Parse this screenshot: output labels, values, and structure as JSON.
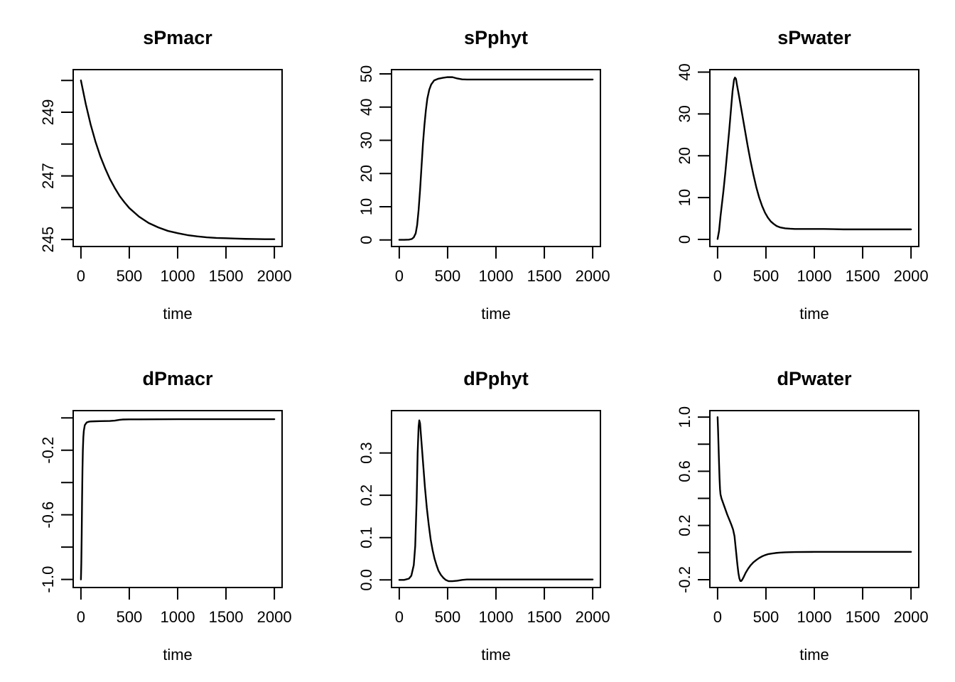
{
  "figure": {
    "background": "#ffffff",
    "stroke_color": "#000000",
    "text_color": "#000000",
    "x_axis_label": "time",
    "x_ticks": [
      0,
      500,
      1000,
      1500,
      2000
    ],
    "xlim": [
      -80,
      2080
    ]
  },
  "chart_data": [
    {
      "type": "line",
      "title": "sPmacr",
      "xlabel": "time",
      "ylabel": "",
      "xlim": [
        -80,
        2080
      ],
      "ylim": [
        244.78,
        250.34
      ],
      "x_ticks": [
        [
          0,
          "0"
        ],
        [
          500,
          "500"
        ],
        [
          1000,
          "1000"
        ],
        [
          1500,
          "1500"
        ],
        [
          2000,
          "2000"
        ]
      ],
      "y_ticks": [
        [
          245,
          "245"
        ],
        [
          246,
          null
        ],
        [
          247,
          "247"
        ],
        [
          248,
          null
        ],
        [
          249,
          "249"
        ],
        [
          250,
          null
        ]
      ],
      "x": [
        0,
        50,
        100,
        150,
        200,
        250,
        300,
        350,
        400,
        450,
        500,
        600,
        700,
        800,
        900,
        1000,
        1100,
        1200,
        1300,
        1400,
        1500,
        1600,
        1700,
        1800,
        1900,
        2000
      ],
      "y": [
        250.0,
        249.26,
        248.62,
        248.08,
        247.62,
        247.24,
        246.9,
        246.62,
        246.37,
        246.17,
        245.99,
        245.72,
        245.52,
        245.38,
        245.27,
        245.2,
        245.14,
        245.1,
        245.07,
        245.05,
        245.04,
        245.03,
        245.02,
        245.015,
        245.01,
        245.01
      ]
    },
    {
      "type": "line",
      "title": "sPphyt",
      "xlabel": "time",
      "ylabel": "",
      "xlim": [
        -80,
        2080
      ],
      "ylim": [
        -1.97,
        51.27
      ],
      "x_ticks": [
        [
          0,
          "0"
        ],
        [
          500,
          "500"
        ],
        [
          1000,
          "1000"
        ],
        [
          1500,
          "1500"
        ],
        [
          2000,
          "2000"
        ]
      ],
      "y_ticks": [
        [
          0,
          "0"
        ],
        [
          10,
          "10"
        ],
        [
          20,
          "20"
        ],
        [
          30,
          "30"
        ],
        [
          40,
          "40"
        ],
        [
          50,
          "50"
        ]
      ],
      "x": [
        0,
        50,
        100,
        130,
        150,
        170,
        185,
        200,
        215,
        230,
        245,
        260,
        275,
        290,
        310,
        330,
        360,
        400,
        450,
        500,
        550,
        600,
        650,
        700,
        800,
        1000,
        1200,
        1400,
        1600,
        1800,
        2000
      ],
      "y": [
        0.05,
        0.05,
        0.1,
        0.3,
        0.8,
        2,
        4.5,
        9,
        15,
        22,
        29,
        34.5,
        39,
        42.5,
        45.2,
        46.8,
        48.0,
        48.5,
        48.8,
        49.0,
        49.0,
        48.6,
        48.35,
        48.3,
        48.3,
        48.3,
        48.3,
        48.3,
        48.3,
        48.3,
        48.3
      ]
    },
    {
      "type": "line",
      "title": "sPwater",
      "xlabel": "time",
      "ylabel": "",
      "xlim": [
        -80,
        2080
      ],
      "ylim": [
        -1.7,
        40.6
      ],
      "x_ticks": [
        [
          0,
          "0"
        ],
        [
          500,
          "500"
        ],
        [
          1000,
          "1000"
        ],
        [
          1500,
          "1500"
        ],
        [
          2000,
          "2000"
        ]
      ],
      "y_ticks": [
        [
          0,
          "0"
        ],
        [
          10,
          "10"
        ],
        [
          20,
          "20"
        ],
        [
          30,
          "30"
        ],
        [
          40,
          "40"
        ]
      ],
      "x": [
        0,
        15,
        30,
        45,
        60,
        80,
        100,
        120,
        140,
        155,
        170,
        180,
        190,
        200,
        220,
        250,
        280,
        310,
        340,
        370,
        400,
        430,
        460,
        490,
        520,
        550,
        580,
        610,
        650,
        700,
        750,
        800,
        900,
        1000,
        1100,
        1200,
        1300,
        1400,
        1600,
        1800,
        2000
      ],
      "y": [
        0.1,
        2,
        5.5,
        8.5,
        11.5,
        16,
        21,
        26,
        31.5,
        35.5,
        38.2,
        38.7,
        38.4,
        37,
        34.5,
        30.5,
        26.5,
        22.5,
        18.8,
        15.5,
        12.5,
        10,
        8,
        6.4,
        5.2,
        4.3,
        3.7,
        3.2,
        2.85,
        2.65,
        2.55,
        2.5,
        2.5,
        2.5,
        2.5,
        2.45,
        2.4,
        2.4,
        2.4,
        2.4,
        2.4
      ]
    },
    {
      "type": "line",
      "title": "dPmacr",
      "xlabel": "time",
      "ylabel": "",
      "xlim": [
        -80,
        2080
      ],
      "ylim": [
        -1.05,
        0.045
      ],
      "x_ticks": [
        [
          0,
          "0"
        ],
        [
          500,
          "500"
        ],
        [
          1000,
          "1000"
        ],
        [
          1500,
          "1500"
        ],
        [
          2000,
          "2000"
        ]
      ],
      "y_ticks": [
        [
          -1.0,
          "-1.0"
        ],
        [
          -0.8,
          null
        ],
        [
          -0.6,
          "-0.6"
        ],
        [
          -0.4,
          null
        ],
        [
          -0.2,
          "-0.2"
        ],
        [
          0.0,
          null
        ]
      ],
      "x": [
        0,
        4,
        8,
        12,
        16,
        20,
        25,
        30,
        40,
        60,
        80,
        100,
        150,
        200,
        250,
        300,
        350,
        400,
        430,
        500,
        600,
        800,
        1000,
        1200,
        1500,
        2000
      ],
      "y": [
        -1.0,
        -0.9,
        -0.72,
        -0.5,
        -0.32,
        -0.2,
        -0.12,
        -0.08,
        -0.045,
        -0.028,
        -0.024,
        -0.022,
        -0.021,
        -0.02,
        -0.0195,
        -0.019,
        -0.017,
        -0.012,
        -0.01,
        -0.009,
        -0.009,
        -0.0085,
        -0.008,
        -0.008,
        -0.008,
        -0.008
      ]
    },
    {
      "type": "line",
      "title": "dPphyt",
      "xlabel": "time",
      "ylabel": "",
      "xlim": [
        -80,
        2080
      ],
      "ylim": [
        -0.018,
        0.4
      ],
      "x_ticks": [
        [
          0,
          "0"
        ],
        [
          500,
          "500"
        ],
        [
          1000,
          "1000"
        ],
        [
          1500,
          "1500"
        ],
        [
          2000,
          "2000"
        ]
      ],
      "y_ticks": [
        [
          0.0,
          "0.0"
        ],
        [
          0.1,
          "0.1"
        ],
        [
          0.2,
          "0.2"
        ],
        [
          0.3,
          "0.3"
        ]
      ],
      "x": [
        0,
        50,
        100,
        125,
        150,
        165,
        180,
        190,
        200,
        207,
        215,
        225,
        245,
        265,
        285,
        305,
        325,
        345,
        365,
        385,
        405,
        430,
        455,
        480,
        510,
        550,
        600,
        650,
        700,
        800,
        1000,
        1200,
        1500,
        2000
      ],
      "y": [
        0.0,
        0.0,
        0.003,
        0.01,
        0.035,
        0.08,
        0.19,
        0.3,
        0.362,
        0.377,
        0.37,
        0.34,
        0.28,
        0.22,
        0.17,
        0.13,
        0.095,
        0.07,
        0.05,
        0.035,
        0.022,
        0.012,
        0.005,
        0.0,
        -0.003,
        -0.003,
        -0.002,
        0.0,
        0.001,
        0.001,
        0.001,
        0.001,
        0.001,
        0.001
      ]
    },
    {
      "type": "line",
      "title": "dPwater",
      "xlabel": "time",
      "ylabel": "",
      "xlim": [
        -80,
        2080
      ],
      "ylim": [
        -0.258,
        1.048
      ],
      "x_ticks": [
        [
          0,
          "0"
        ],
        [
          500,
          "500"
        ],
        [
          1000,
          "1000"
        ],
        [
          1500,
          "1500"
        ],
        [
          2000,
          "2000"
        ]
      ],
      "y_ticks": [
        [
          -0.2,
          "-0.2"
        ],
        [
          0.0,
          null
        ],
        [
          0.2,
          "0.2"
        ],
        [
          0.4,
          null
        ],
        [
          0.6,
          "0.6"
        ],
        [
          0.8,
          null
        ],
        [
          1.0,
          "1.0"
        ]
      ],
      "x": [
        0,
        5,
        10,
        15,
        20,
        25,
        30,
        40,
        60,
        80,
        100,
        120,
        140,
        160,
        175,
        185,
        195,
        205,
        215,
        225,
        235,
        245,
        255,
        270,
        290,
        315,
        340,
        370,
        400,
        430,
        460,
        490,
        520,
        560,
        600,
        650,
        700,
        800,
        1000,
        1200,
        1400,
        1600,
        1800,
        2000
      ],
      "y": [
        1.0,
        0.9,
        0.78,
        0.66,
        0.55,
        0.47,
        0.43,
        0.4,
        0.36,
        0.32,
        0.28,
        0.245,
        0.21,
        0.17,
        0.12,
        0.05,
        -0.02,
        -0.09,
        -0.15,
        -0.19,
        -0.21,
        -0.21,
        -0.2,
        -0.18,
        -0.15,
        -0.12,
        -0.095,
        -0.072,
        -0.055,
        -0.04,
        -0.028,
        -0.019,
        -0.012,
        -0.007,
        -0.003,
        0.0,
        0.002,
        0.004,
        0.005,
        0.005,
        0.005,
        0.005,
        0.005,
        0.005
      ]
    }
  ]
}
